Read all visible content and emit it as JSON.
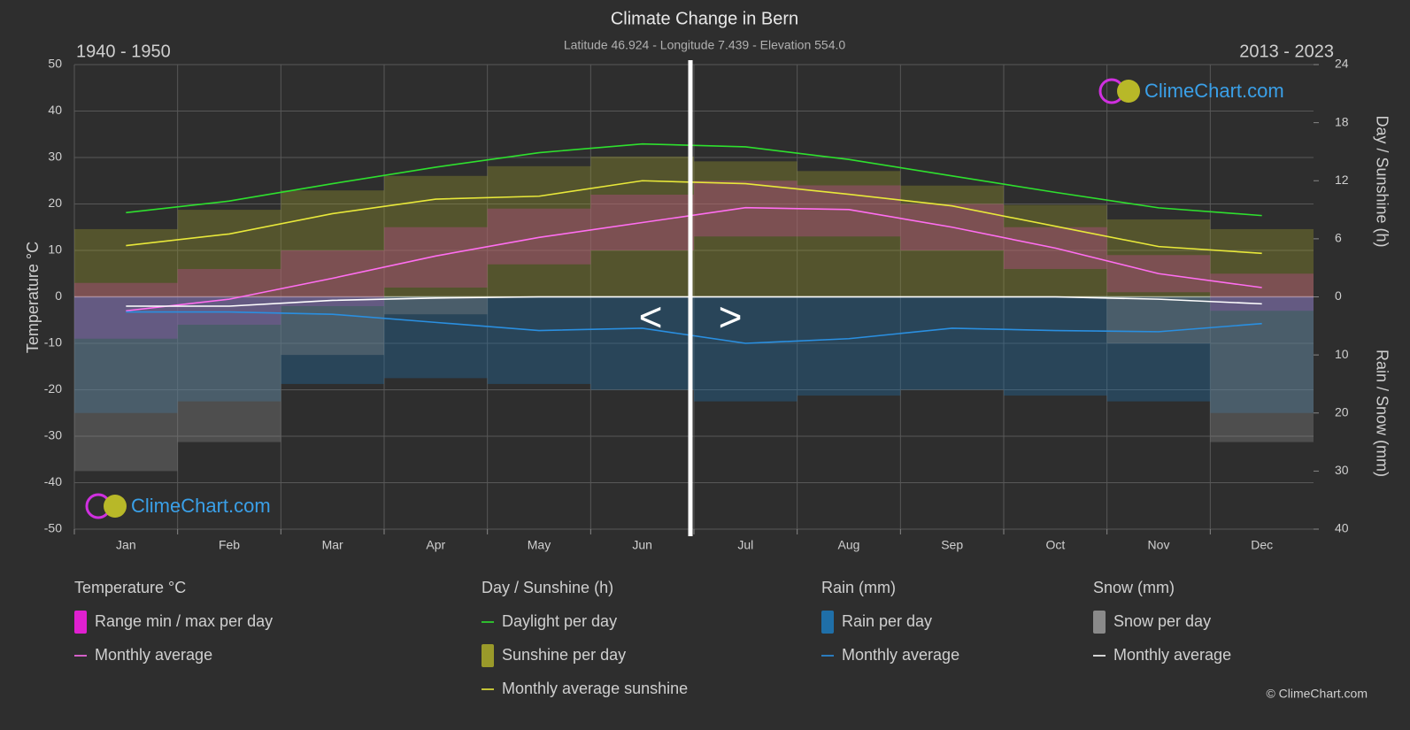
{
  "chart_data": {
    "type": "climate",
    "title": "Climate Change in Bern",
    "subtitle": "Latitude 46.924 - Longitude 7.439 - Elevation 554.0",
    "left_period": "1940 - 1950",
    "right_period": "2013 - 2023",
    "ylabel": "Temperature °C",
    "y2label": "Day / Sunshine (h)",
    "y3label": "Rain / Snow (mm)",
    "categories": [
      "Jan",
      "Feb",
      "Mar",
      "Apr",
      "May",
      "Jun",
      "Jul",
      "Aug",
      "Sep",
      "Oct",
      "Nov",
      "Dec"
    ],
    "ylim": [
      -50,
      50
    ],
    "yticks": [
      -50,
      -40,
      -30,
      -20,
      -10,
      0,
      10,
      20,
      30,
      40,
      50
    ],
    "y2lim": [
      0,
      24
    ],
    "y2ticks": [
      0,
      6,
      12,
      18,
      24
    ],
    "y3lim": [
      0,
      40
    ],
    "y3ticks": [
      10,
      20,
      30,
      40
    ],
    "grid": true,
    "nav": [
      "<",
      ">"
    ],
    "watermark": "ClimeChart.com",
    "copyright": "© ClimeChart.com",
    "groups": [
      {
        "title": "Temperature °C",
        "series": [
          {
            "name": "Range min / max per day",
            "kind": "range",
            "axis": "y",
            "color": "#e020d0",
            "min": [
              -9,
              -6,
              -2,
              2,
              7,
              10,
              13,
              13,
              10,
              6,
              1,
              -3
            ],
            "max": [
              3,
              6,
              10,
              15,
              19,
              22,
              25,
              24,
              20,
              15,
              9,
              5
            ]
          },
          {
            "name": "Monthly average",
            "kind": "line",
            "axis": "y",
            "color": "#ff6ef0",
            "values": [
              -3,
              -0.5,
              4,
              8.8,
              12.8,
              16,
              19.2,
              18.8,
              15,
              10.5,
              5,
              2
            ]
          }
        ]
      },
      {
        "title": "Day / Sunshine (h)",
        "series": [
          {
            "name": "Daylight per day",
            "kind": "line",
            "axis": "y2",
            "color": "#2ee02e",
            "values": [
              8.7,
              9.9,
              11.7,
              13.4,
              14.9,
              15.8,
              15.5,
              14.2,
              12.5,
              10.8,
              9.2,
              8.4
            ]
          },
          {
            "name": "Sunshine per day",
            "kind": "bars",
            "axis": "y2",
            "color": "#9a9a2a",
            "values": [
              7,
              9,
              11,
              12.5,
              13.5,
              14.5,
              14,
              13,
              11.5,
              9.5,
              8,
              7
            ]
          },
          {
            "name": "Monthly average sunshine",
            "kind": "line",
            "axis": "y2",
            "color": "#e8e83a",
            "values": [
              5.3,
              6.5,
              8.6,
              10.1,
              10.4,
              12,
              11.7,
              10.6,
              9.4,
              7.3,
              5.2,
              4.5
            ]
          }
        ]
      },
      {
        "title": "Rain (mm)",
        "series": [
          {
            "name": "Rain per day",
            "kind": "bars",
            "axis": "y3",
            "color": "#1f6fa8",
            "values": [
              20,
              18,
              15,
              14,
              15,
              16,
              18,
              17,
              16,
              17,
              18,
              20
            ]
          },
          {
            "name": "Monthly average",
            "kind": "line",
            "axis": "y3",
            "color": "#2a8fe0",
            "values": [
              2.6,
              2.6,
              3,
              4.4,
              5.8,
              5.4,
              8,
              7.2,
              5.4,
              5.8,
              6,
              4.6
            ]
          }
        ]
      },
      {
        "title": "Snow (mm)",
        "series": [
          {
            "name": "Snow per day",
            "kind": "bars",
            "axis": "y3",
            "color": "#8a8a8a",
            "values": [
              30,
              25,
              10,
              3,
              0,
              0,
              0,
              0,
              0,
              0,
              8,
              25
            ]
          },
          {
            "name": "Monthly average",
            "kind": "line",
            "axis": "y3",
            "color": "#ffffff",
            "values": [
              1.6,
              1.6,
              0.6,
              0.2,
              0,
              0,
              0,
              0,
              0,
              0,
              0.4,
              1.2
            ]
          }
        ]
      }
    ]
  }
}
